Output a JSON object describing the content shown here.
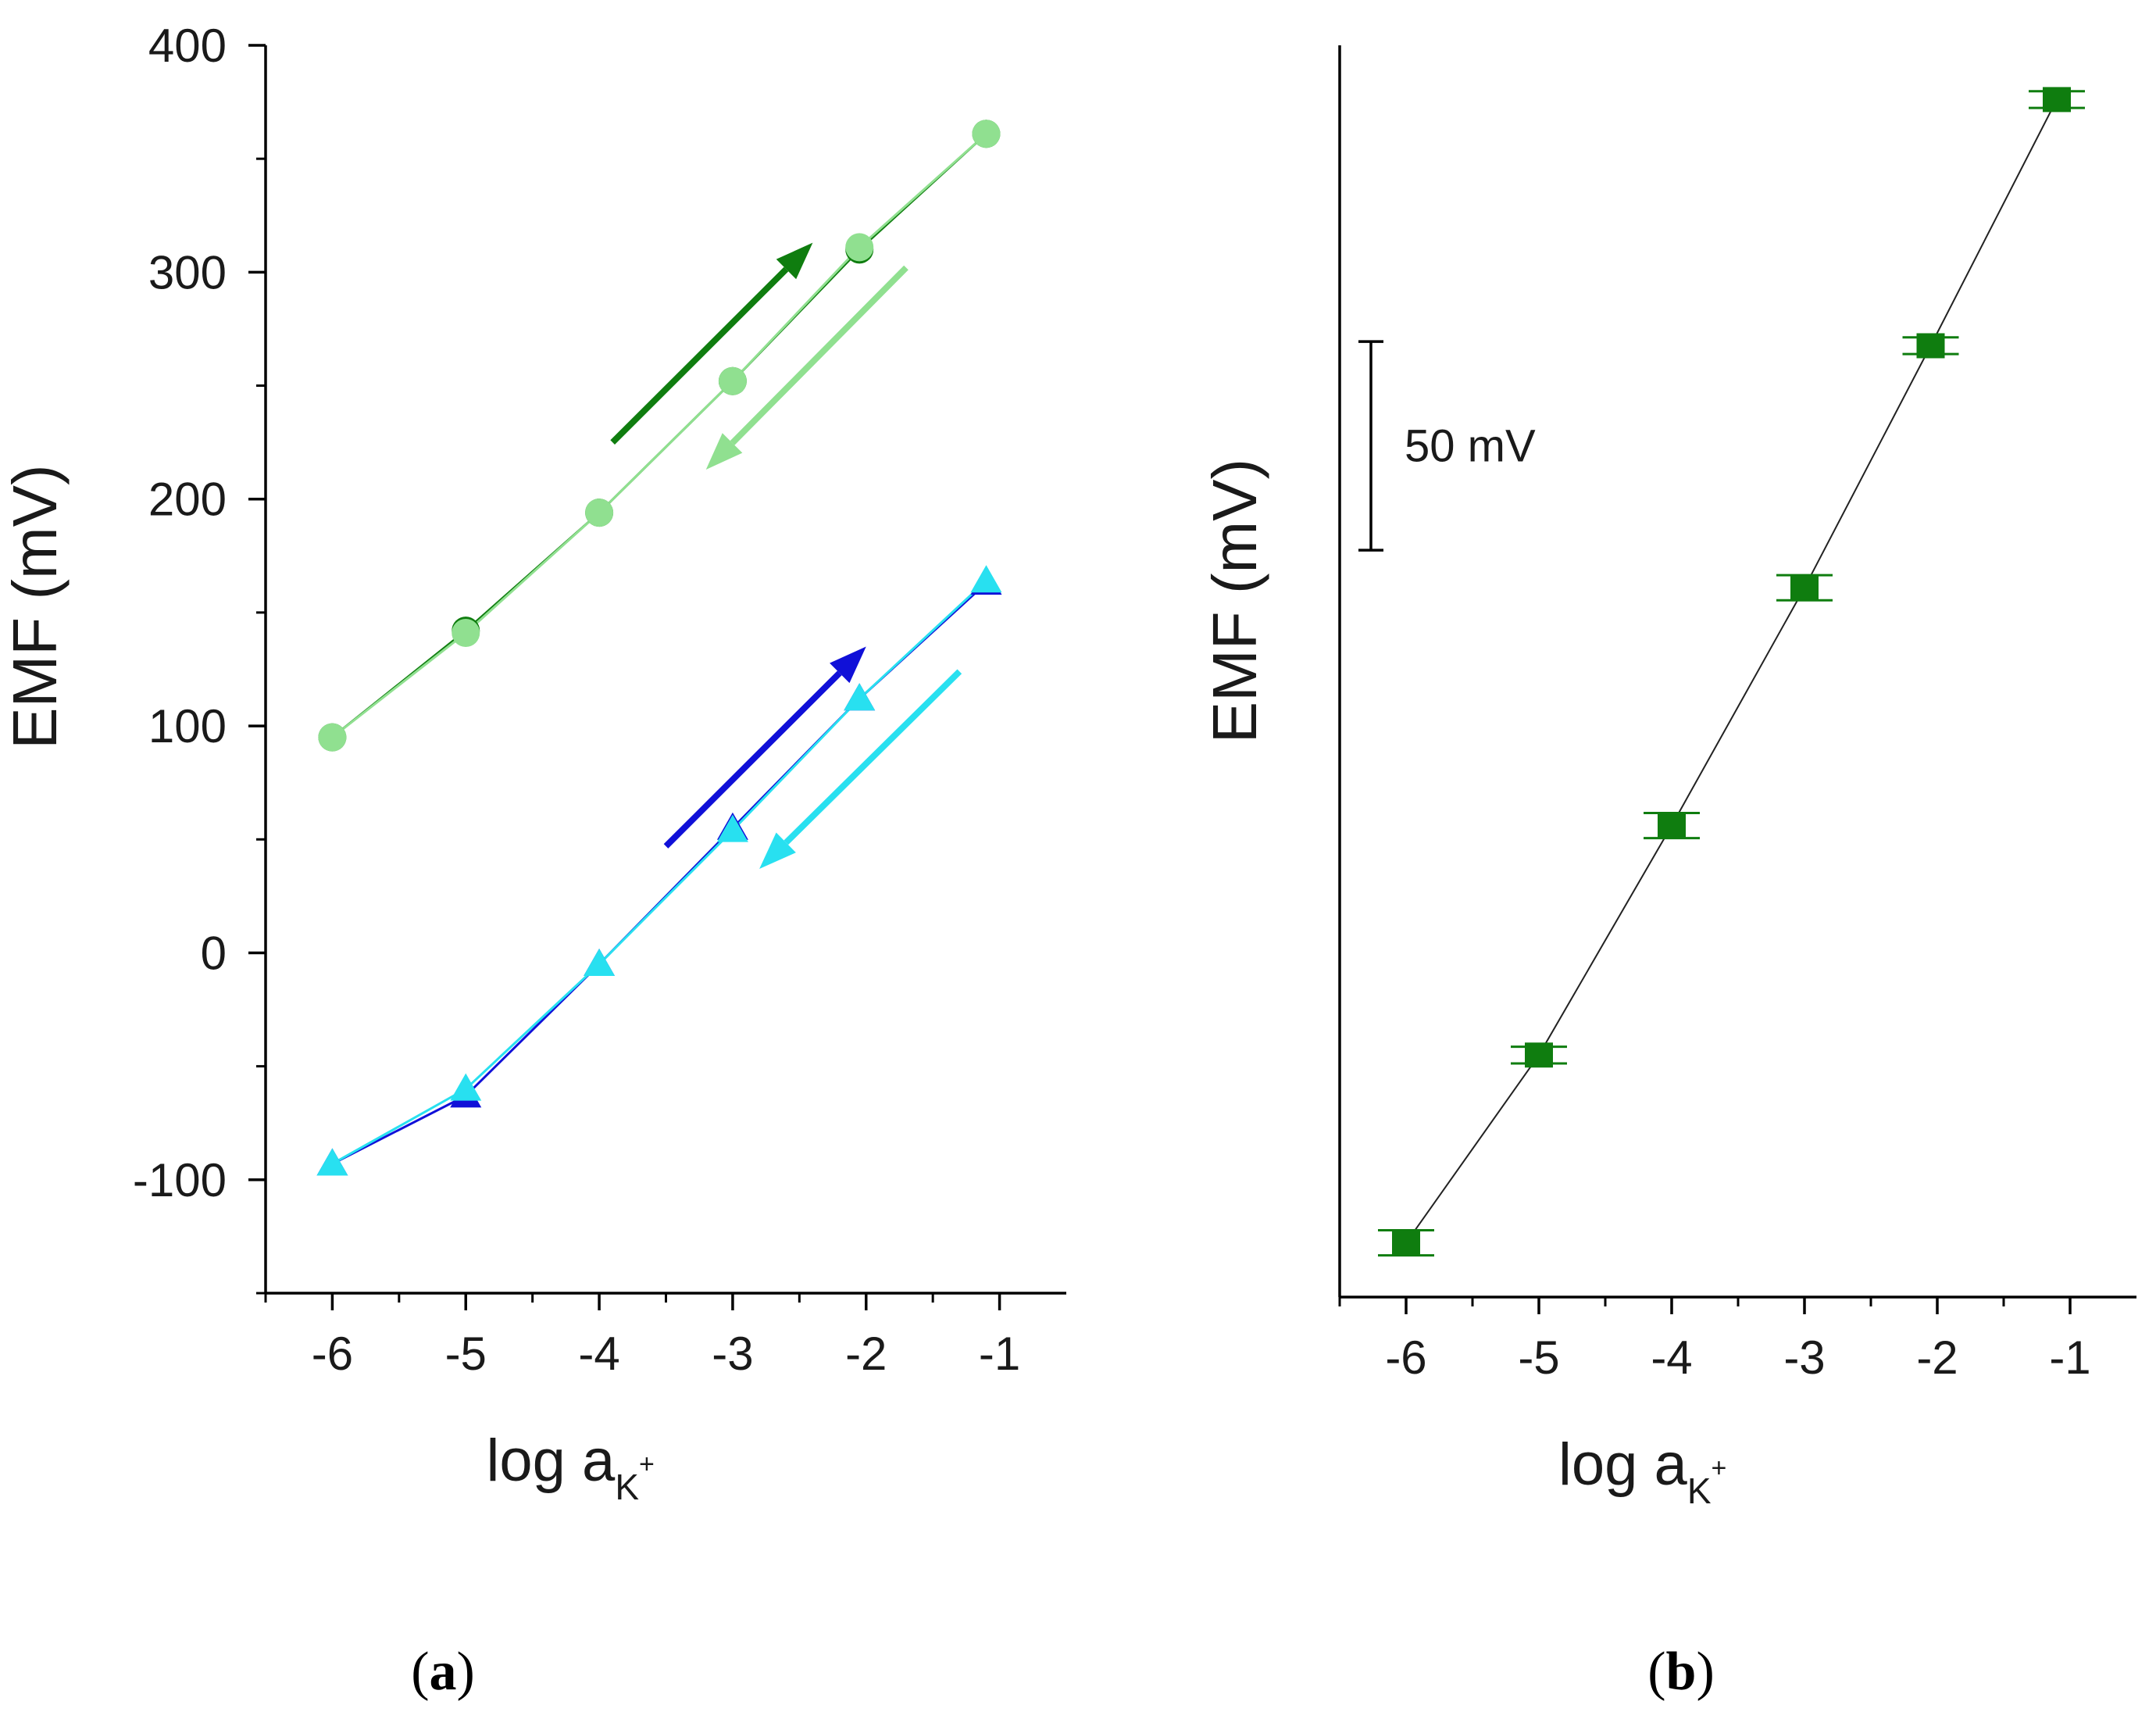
{
  "chart_data": [
    {
      "panel": "a",
      "type": "line",
      "xlabel": "log a",
      "xlabel_subscript": "K",
      "xlabel_superscript": "+",
      "ylabel": "EMF (mV)",
      "xlim": [
        -6.5,
        -0.5
      ],
      "ylim": [
        -150,
        400
      ],
      "xticks": [
        -6,
        -5,
        -4,
        -3,
        -2,
        -1
      ],
      "xtick_labels": [
        "-6",
        "-5",
        "-4",
        "-3",
        "-2",
        "-1"
      ],
      "yticks": [
        -100,
        0,
        100,
        200,
        300,
        400
      ],
      "ytick_labels": [
        "-100",
        "0",
        "100",
        "200",
        "300",
        "400"
      ],
      "series": [
        {
          "name": "circles-up",
          "marker": "circle",
          "color": "#0f7d0f",
          "x": [
            -6,
            -5,
            -4,
            -3,
            -2.05,
            -1.1
          ],
          "y": [
            95,
            142,
            194,
            252,
            310,
            361
          ]
        },
        {
          "name": "circles-down",
          "marker": "circle",
          "color": "#90e090",
          "x": [
            -6,
            -5,
            -4,
            -3,
            -2.05,
            -1.1
          ],
          "y": [
            95,
            141,
            194,
            252,
            311,
            361
          ]
        },
        {
          "name": "triangles-up",
          "marker": "triangle",
          "color": "#1010d8",
          "x": [
            -6,
            -5,
            -4,
            -3,
            -2.05,
            -1.1
          ],
          "y": [
            -93,
            -63,
            -5,
            55,
            112,
            163
          ]
        },
        {
          "name": "triangles-down",
          "marker": "triangle",
          "color": "#28e0f0",
          "x": [
            -6,
            -5,
            -4,
            -3,
            -2.05,
            -1.1
          ],
          "y": [
            -93,
            -60,
            -5,
            54,
            112,
            164
          ]
        }
      ],
      "arrows": [
        {
          "direction": "increasing",
          "color": "#0f7d0f",
          "from": [
            -3.9,
            225
          ],
          "to": [
            -2.4,
            313
          ]
        },
        {
          "direction": "decreasing",
          "color": "#90e090",
          "from": [
            -1.7,
            302
          ],
          "to": [
            -3.2,
            213
          ]
        },
        {
          "direction": "increasing",
          "color": "#1010d8",
          "from": [
            -3.5,
            47
          ],
          "to": [
            -2.0,
            135
          ]
        },
        {
          "direction": "decreasing",
          "color": "#28e0f0",
          "from": [
            -1.3,
            124
          ],
          "to": [
            -2.8,
            37
          ]
        }
      ]
    },
    {
      "panel": "b",
      "type": "line",
      "xlabel": "log a",
      "xlabel_subscript": "K",
      "xlabel_superscript": "+",
      "ylabel": "EMF (mV)",
      "xlim": [
        -6.5,
        -0.5
      ],
      "ylim": [
        0,
        300
      ],
      "xticks": [
        -6,
        -5,
        -4,
        -3,
        -2,
        -1
      ],
      "xtick_labels": [
        "-6",
        "-5",
        "-4",
        "-3",
        "-2",
        "-1"
      ],
      "scale_bar": {
        "label": "50 mV",
        "value": 50,
        "from": 179,
        "to": 229
      },
      "series": [
        {
          "name": "mean",
          "marker": "square",
          "color": "#0f7d0f",
          "x": [
            -6,
            -5,
            -4,
            -3,
            -2.05,
            -1.1
          ],
          "y": [
            13,
            58,
            113,
            170,
            228,
            287
          ],
          "yerr": [
            3,
            2,
            3,
            3,
            2,
            2
          ]
        }
      ]
    }
  ],
  "panel_labels": [
    "a",
    "b"
  ]
}
